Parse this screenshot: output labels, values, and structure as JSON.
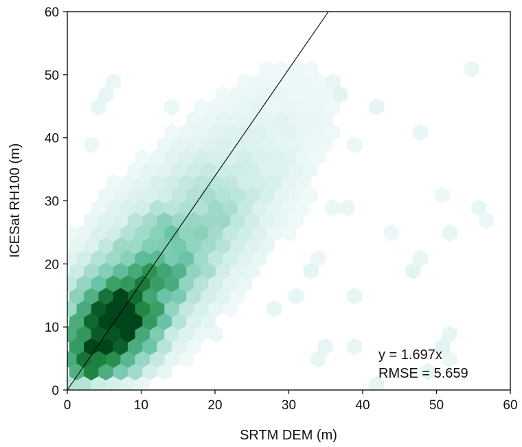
{
  "chart_data": {
    "type": "hexbin",
    "title": "",
    "xlabel": "SRTM DEM (m)",
    "ylabel": "ICESat RH100 (m)",
    "xlim": [
      0,
      60
    ],
    "ylim": [
      0,
      60
    ],
    "xticks": [
      "0",
      "10",
      "20",
      "30",
      "40",
      "50",
      "60"
    ],
    "yticks": [
      "0",
      "10",
      "20",
      "30",
      "40",
      "50",
      "60"
    ],
    "grid": false,
    "colormap": {
      "low": "#f7fcfd",
      "high": "#00441b"
    },
    "fit_line": {
      "slope": 1.697,
      "intercept": 0
    },
    "annotations": [
      "y = 1.697x",
      "RMSE = 5.659"
    ],
    "density_model": {
      "trend_slope": 1.65,
      "peak": [
        6.5,
        11
      ],
      "spread_x": 5.5
    }
  }
}
